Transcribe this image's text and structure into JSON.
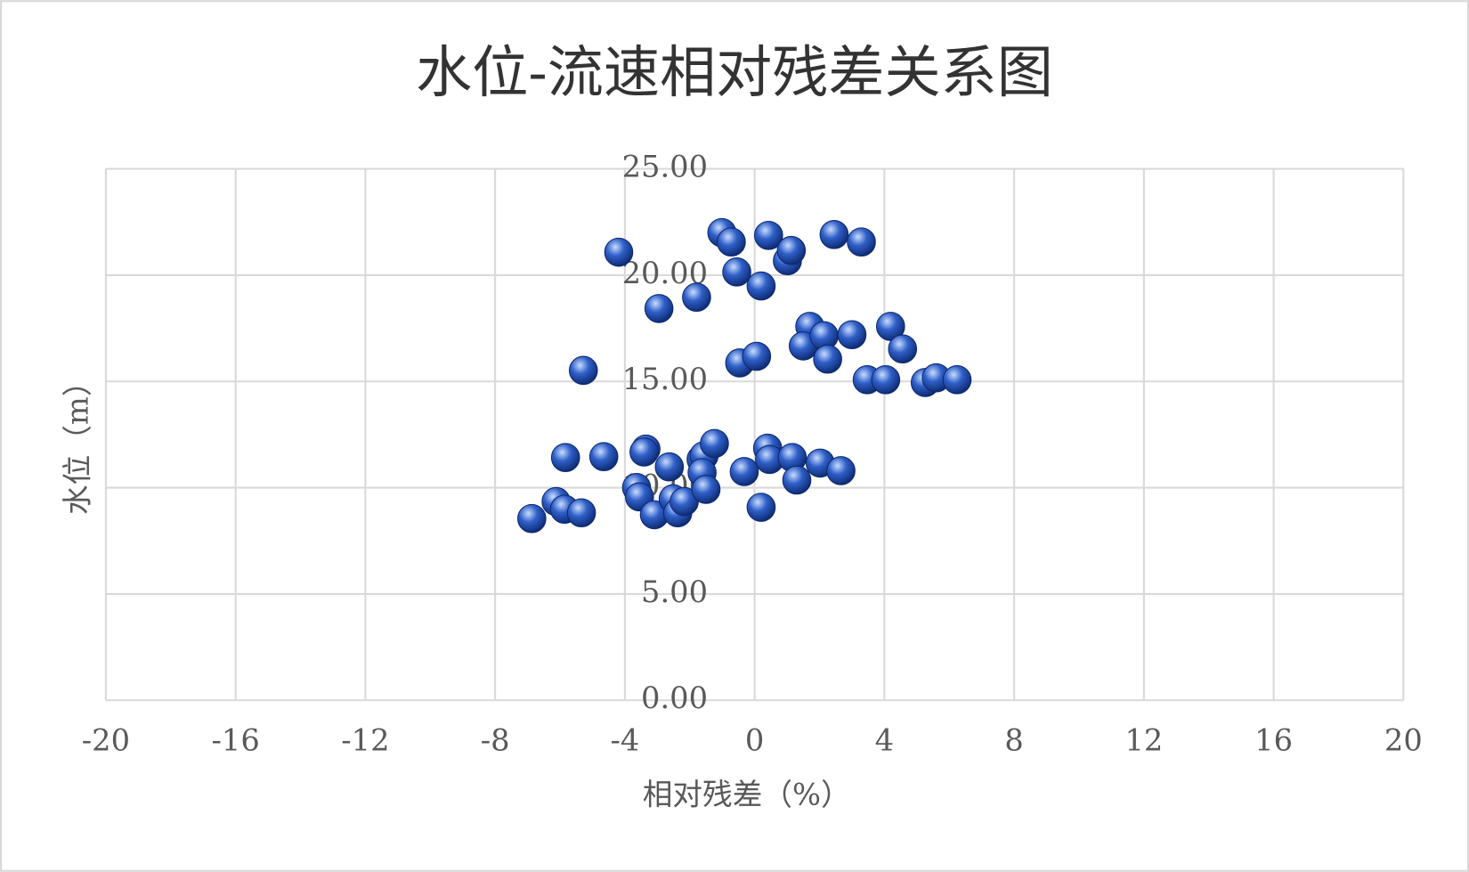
{
  "chart_data": {
    "type": "scatter",
    "title": "水位-流速相对残差关系图",
    "x_label": "相对残差（%）",
    "y_label": "水位（m）",
    "color": "#2f5fc8",
    "grid": true,
    "xlim": [
      -20,
      20
    ],
    "xticks": [
      -20,
      -16,
      -12,
      -8,
      -4,
      0,
      4,
      8,
      12,
      16,
      20
    ],
    "ylim": [
      0,
      25
    ],
    "yticks": [
      {
        "value": 0,
        "label": "0.00"
      },
      {
        "value": 5,
        "label": "5.00"
      },
      {
        "value": 10,
        "label": "10.00"
      },
      {
        "value": 15,
        "label": "15.00"
      },
      {
        "value": 20,
        "label": "20.00"
      },
      {
        "value": 25,
        "label": "25.00"
      }
    ],
    "x": [
      -4.19,
      -2.95,
      -1.79,
      -1.01,
      -0.72,
      -0.55,
      0.2,
      0.43,
      1.01,
      1.13,
      2.45,
      3.29,
      -5.28,
      -0.46,
      0.06,
      1.7,
      1.5,
      2.14,
      2.25,
      3.0,
      4.19,
      4.56,
      3.47,
      4.04,
      5.26,
      5.6,
      6.24,
      -5.83,
      -4.65,
      -6.87,
      -6.12,
      -5.86,
      -5.34,
      -3.35,
      -3.41,
      -2.63,
      -3.64,
      -3.55,
      -3.09,
      -2.51,
      -2.37,
      -2.17,
      -1.65,
      -1.56,
      -1.24,
      -1.62,
      -1.5,
      -0.32,
      0.4,
      0.46,
      0.2,
      1.16,
      1.3,
      2.02,
      2.66
    ],
    "values": [
      21.08,
      18.43,
      18.96,
      22.0,
      21.56,
      20.15,
      19.49,
      21.87,
      20.68,
      21.16,
      21.91,
      21.56,
      15.52,
      15.87,
      16.18,
      17.59,
      16.67,
      17.15,
      16.05,
      17.2,
      17.59,
      16.53,
      15.08,
      15.08,
      14.95,
      15.17,
      15.08,
      11.42,
      11.46,
      8.55,
      9.35,
      8.99,
      8.82,
      11.82,
      11.68,
      10.98,
      10.01,
      9.57,
      8.73,
      9.48,
      8.82,
      9.35,
      11.33,
      11.51,
      12.08,
      10.71,
      9.92,
      10.76,
      11.86,
      11.33,
      9.08,
      11.42,
      10.36,
      11.16,
      10.8
    ]
  }
}
